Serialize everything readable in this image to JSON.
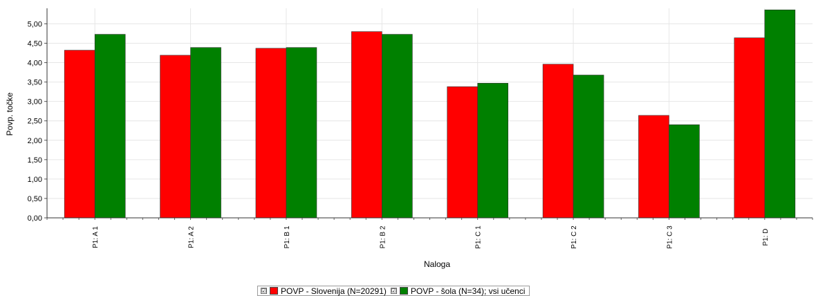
{
  "chart_data": {
    "type": "bar",
    "categories": [
      "P1: A 1",
      "P1: A 2",
      "P1: B 1",
      "P1: B 2",
      "P1: C 1",
      "P1: C 2",
      "P1: C 3",
      "P1: D"
    ],
    "series": [
      {
        "name": "POVP - Slovenija (N=20291)",
        "color": "#ff0000",
        "values": [
          4.32,
          4.19,
          4.37,
          4.8,
          3.38,
          3.96,
          2.64,
          4.64
        ]
      },
      {
        "name": "POVP - šola (N=34); vsi učenci",
        "color": "#008000",
        "values": [
          4.73,
          4.39,
          4.39,
          4.73,
          3.47,
          3.68,
          2.4,
          5.36
        ]
      }
    ],
    "xlabel": "Naloga",
    "ylabel": "Povp. točke",
    "ylim": [
      0,
      5.4
    ],
    "yticks": [
      "0,00",
      "0,50",
      "1,00",
      "1,50",
      "2,00",
      "2,50",
      "3,00",
      "3,50",
      "4,00",
      "4,50",
      "5,00"
    ],
    "grid": true,
    "legend_position": "bottom-center"
  },
  "legend": {
    "checkbox_glyph": "☑",
    "items": [
      {
        "label": "POVP - Slovenija (N=20291)",
        "color": "#ff0000"
      },
      {
        "label": "POVP - šola (N=34); vsi učenci",
        "color": "#008000"
      }
    ]
  }
}
